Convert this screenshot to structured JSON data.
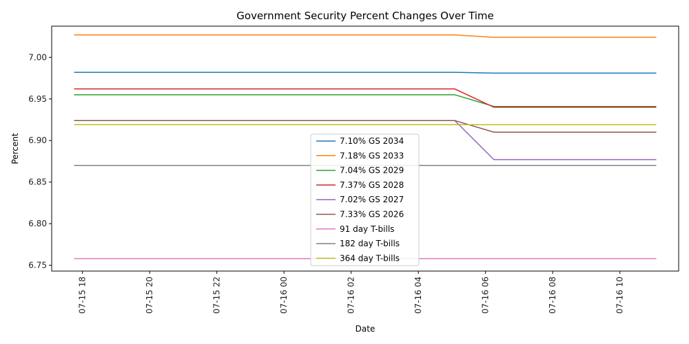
{
  "chart_data": {
    "type": "line",
    "title": "Government Security Percent Changes Over Time",
    "xlabel": "Date",
    "ylabel": "Percent",
    "x": [
      "07-15 17:45",
      "07-16 05:05",
      "07-16 06:15",
      "07-16 11:05"
    ],
    "x_range": [
      "07-15 17:05",
      "07-16 11:45"
    ],
    "ylim": [
      6.743,
      7.0375
    ],
    "x_ticks": [
      "07-15 18",
      "07-15 20",
      "07-15 22",
      "07-16 00",
      "07-16 02",
      "07-16 04",
      "07-16 06",
      "07-16 08",
      "07-16 10"
    ],
    "y_ticks": [
      "6.75",
      "6.80",
      "6.85",
      "6.90",
      "6.95",
      "7.00"
    ],
    "grid": false,
    "legend_position": "center-bottom",
    "series": [
      {
        "name": "7.10% GS 2034",
        "color": "#1f77b4",
        "values": [
          6.982,
          6.982,
          6.981,
          6.981
        ]
      },
      {
        "name": "7.18% GS 2033",
        "color": "#ff7f0e",
        "values": [
          7.027,
          7.027,
          7.024,
          7.024
        ]
      },
      {
        "name": "7.04% GS 2029",
        "color": "#2ca02c",
        "values": [
          6.955,
          6.955,
          6.941,
          6.941
        ]
      },
      {
        "name": "7.37% GS 2028",
        "color": "#d62728",
        "values": [
          6.962,
          6.962,
          6.94,
          6.94
        ]
      },
      {
        "name": "7.02% GS 2027",
        "color": "#9467bd",
        "values": [
          6.924,
          6.924,
          6.877,
          6.877
        ]
      },
      {
        "name": "7.33% GS 2026",
        "color": "#8c564b",
        "values": [
          6.924,
          6.924,
          6.91,
          6.91
        ]
      },
      {
        "name": "91 day T-bills",
        "color": "#e377c2",
        "values": [
          6.758,
          6.758,
          6.758,
          6.758
        ]
      },
      {
        "name": "182 day T-bills",
        "color": "#7f7f7f",
        "values": [
          6.87,
          6.87,
          6.87,
          6.87
        ]
      },
      {
        "name": "364 day T-bills",
        "color": "#bcbd22",
        "values": [
          6.919,
          6.919,
          6.919,
          6.919
        ]
      }
    ]
  }
}
